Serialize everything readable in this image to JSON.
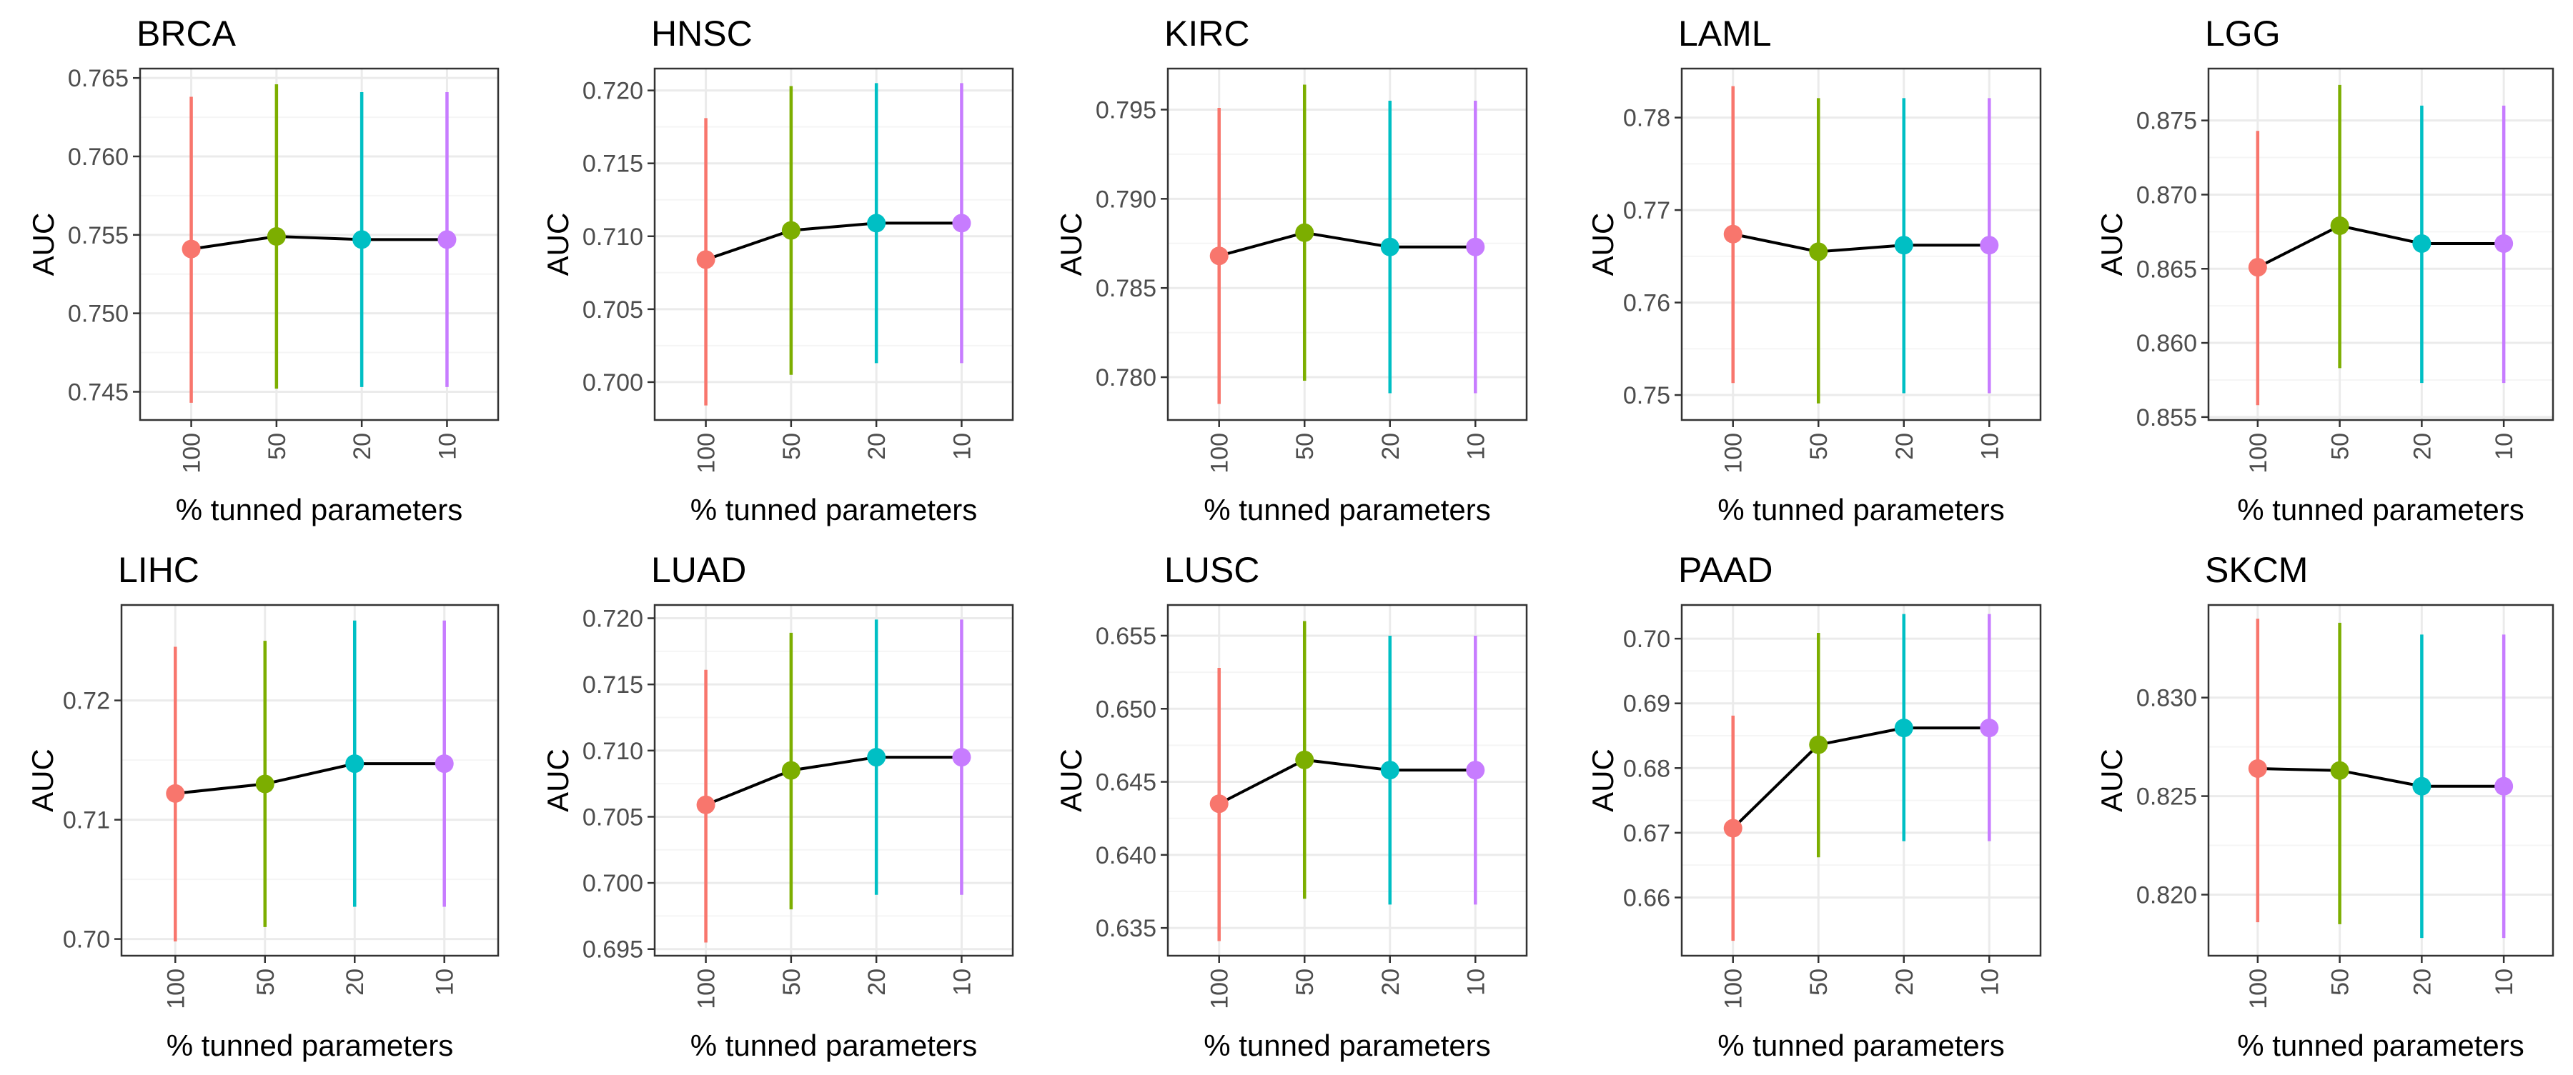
{
  "colors": {
    "series": [
      "#F8766D",
      "#7CAE00",
      "#00BFC4",
      "#C77CFF"
    ],
    "trend_line": "#000000",
    "panel_border": "#333333",
    "grid_major": "#EBEBEB",
    "grid_minor": "#F5F5F5",
    "tick_label": "#4D4D4D",
    "text": "#000000"
  },
  "chart_data": [
    {
      "type": "line",
      "title": "BRCA",
      "xlabel": "% tunned parameters",
      "ylabel": "AUC",
      "categories": [
        "100",
        "50",
        "20",
        "10"
      ],
      "values": [
        0.7541,
        0.7549,
        0.7547,
        0.7547
      ],
      "error_low": [
        0.7443,
        0.7452,
        0.7453,
        0.7453
      ],
      "error_high": [
        0.7638,
        0.7646,
        0.7641,
        0.7641
      ],
      "yticks": [
        0.745,
        0.75,
        0.755,
        0.76,
        0.765
      ],
      "ytick_labels": [
        "0.745",
        "0.750",
        "0.755",
        "0.760",
        "0.765"
      ],
      "ylim": [
        0.7432,
        0.7656
      ],
      "grid": true,
      "legend": "none"
    },
    {
      "type": "line",
      "title": "HNSC",
      "xlabel": "% tunned parameters",
      "ylabel": "AUC",
      "categories": [
        "100",
        "50",
        "20",
        "10"
      ],
      "values": [
        0.7084,
        0.7104,
        0.7109,
        0.7109
      ],
      "error_low": [
        0.6984,
        0.7005,
        0.7013,
        0.7013
      ],
      "error_high": [
        0.7181,
        0.7203,
        0.7205,
        0.7205
      ],
      "yticks": [
        0.7,
        0.705,
        0.71,
        0.715,
        0.72
      ],
      "ytick_labels": [
        "0.700",
        "0.705",
        "0.710",
        "0.715",
        "0.720"
      ],
      "ylim": [
        0.6974,
        0.7215
      ],
      "grid": true,
      "legend": "none"
    },
    {
      "type": "line",
      "title": "KIRC",
      "xlabel": "% tunned parameters",
      "ylabel": "AUC",
      "categories": [
        "100",
        "50",
        "20",
        "10"
      ],
      "values": [
        0.7868,
        0.7881,
        0.7873,
        0.7873
      ],
      "error_low": [
        0.7785,
        0.7798,
        0.7791,
        0.7791
      ],
      "error_high": [
        0.7951,
        0.7964,
        0.7955,
        0.7955
      ],
      "yticks": [
        0.78,
        0.785,
        0.79,
        0.795
      ],
      "ytick_labels": [
        "0.780",
        "0.785",
        "0.790",
        "0.795"
      ],
      "ylim": [
        0.7776,
        0.7973
      ],
      "grid": true,
      "legend": "none"
    },
    {
      "type": "line",
      "title": "LAML",
      "xlabel": "% tunned parameters",
      "ylabel": "AUC",
      "categories": [
        "100",
        "50",
        "20",
        "10"
      ],
      "values": [
        0.7674,
        0.7655,
        0.7662,
        0.7662
      ],
      "error_low": [
        0.7513,
        0.7491,
        0.7502,
        0.7502
      ],
      "error_high": [
        0.7834,
        0.7821,
        0.7821,
        0.7821
      ],
      "yticks": [
        0.75,
        0.76,
        0.77,
        0.78
      ],
      "ytick_labels": [
        "0.75",
        "0.76",
        "0.77",
        "0.78"
      ],
      "ylim": [
        0.7473,
        0.7853
      ],
      "grid": true,
      "legend": "none"
    },
    {
      "type": "line",
      "title": "LGG",
      "xlabel": "% tunned parameters",
      "ylabel": "AUC",
      "categories": [
        "100",
        "50",
        "20",
        "10"
      ],
      "values": [
        0.8651,
        0.8679,
        0.8667,
        0.8667
      ],
      "error_low": [
        0.8558,
        0.8583,
        0.8573,
        0.8573
      ],
      "error_high": [
        0.8743,
        0.8774,
        0.876,
        0.876
      ],
      "yticks": [
        0.855,
        0.86,
        0.865,
        0.87,
        0.875
      ],
      "ytick_labels": [
        "0.855",
        "0.860",
        "0.865",
        "0.870",
        "0.875"
      ],
      "ylim": [
        0.8548,
        0.8785
      ],
      "grid": true,
      "legend": "none"
    },
    {
      "type": "line",
      "title": "LIHC",
      "xlabel": "% tunned parameters",
      "ylabel": "AUC",
      "categories": [
        "100",
        "50",
        "20",
        "10"
      ],
      "values": [
        0.7122,
        0.713,
        0.7147,
        0.7147
      ],
      "error_low": [
        0.6998,
        0.701,
        0.7027,
        0.7027
      ],
      "error_high": [
        0.7245,
        0.725,
        0.7267,
        0.7267
      ],
      "yticks": [
        0.7,
        0.71,
        0.72
      ],
      "ytick_labels": [
        "0.70",
        "0.71",
        "0.72"
      ],
      "ylim": [
        0.6986,
        0.728
      ],
      "grid": true,
      "legend": "none"
    },
    {
      "type": "line",
      "title": "LUAD",
      "xlabel": "% tunned parameters",
      "ylabel": "AUC",
      "categories": [
        "100",
        "50",
        "20",
        "10"
      ],
      "values": [
        0.7059,
        0.7085,
        0.7095,
        0.7095
      ],
      "error_low": [
        0.6955,
        0.698,
        0.6991,
        0.6991
      ],
      "error_high": [
        0.7161,
        0.7189,
        0.7199,
        0.7199
      ],
      "yticks": [
        0.695,
        0.7,
        0.705,
        0.71,
        0.715,
        0.72
      ],
      "ytick_labels": [
        "0.695",
        "0.700",
        "0.705",
        "0.710",
        "0.715",
        "0.720"
      ],
      "ylim": [
        0.6945,
        0.721
      ],
      "grid": true,
      "legend": "none"
    },
    {
      "type": "line",
      "title": "LUSC",
      "xlabel": "% tunned parameters",
      "ylabel": "AUC",
      "categories": [
        "100",
        "50",
        "20",
        "10"
      ],
      "values": [
        0.6435,
        0.6465,
        0.6458,
        0.6458
      ],
      "error_low": [
        0.6341,
        0.637,
        0.6366,
        0.6366
      ],
      "error_high": [
        0.6528,
        0.656,
        0.655,
        0.655
      ],
      "yticks": [
        0.635,
        0.64,
        0.645,
        0.65,
        0.655
      ],
      "ytick_labels": [
        "0.635",
        "0.640",
        "0.645",
        "0.650",
        "0.655"
      ],
      "ylim": [
        0.6331,
        0.6571
      ],
      "grid": true,
      "legend": "none"
    },
    {
      "type": "line",
      "title": "PAAD",
      "xlabel": "% tunned parameters",
      "ylabel": "AUC",
      "categories": [
        "100",
        "50",
        "20",
        "10"
      ],
      "values": [
        0.6707,
        0.6836,
        0.6862,
        0.6862
      ],
      "error_low": [
        0.6533,
        0.6662,
        0.6687,
        0.6687
      ],
      "error_high": [
        0.6881,
        0.7009,
        0.7038,
        0.7038
      ],
      "yticks": [
        0.66,
        0.67,
        0.68,
        0.69,
        0.7
      ],
      "ytick_labels": [
        "0.66",
        "0.67",
        "0.68",
        "0.69",
        "0.70"
      ],
      "ylim": [
        0.651,
        0.7052
      ],
      "grid": true,
      "legend": "none"
    },
    {
      "type": "line",
      "title": "SKCM",
      "xlabel": "% tunned parameters",
      "ylabel": "AUC",
      "categories": [
        "100",
        "50",
        "20",
        "10"
      ],
      "values": [
        0.8264,
        0.8263,
        0.8255,
        0.8255
      ],
      "error_low": [
        0.8186,
        0.8185,
        0.8178,
        0.8178
      ],
      "error_high": [
        0.834,
        0.8338,
        0.8332,
        0.8332
      ],
      "yticks": [
        0.82,
        0.825,
        0.83
      ],
      "ytick_labels": [
        "0.820",
        "0.825",
        "0.830"
      ],
      "ylim": [
        0.8169,
        0.8347
      ],
      "grid": true,
      "legend": "none"
    }
  ]
}
